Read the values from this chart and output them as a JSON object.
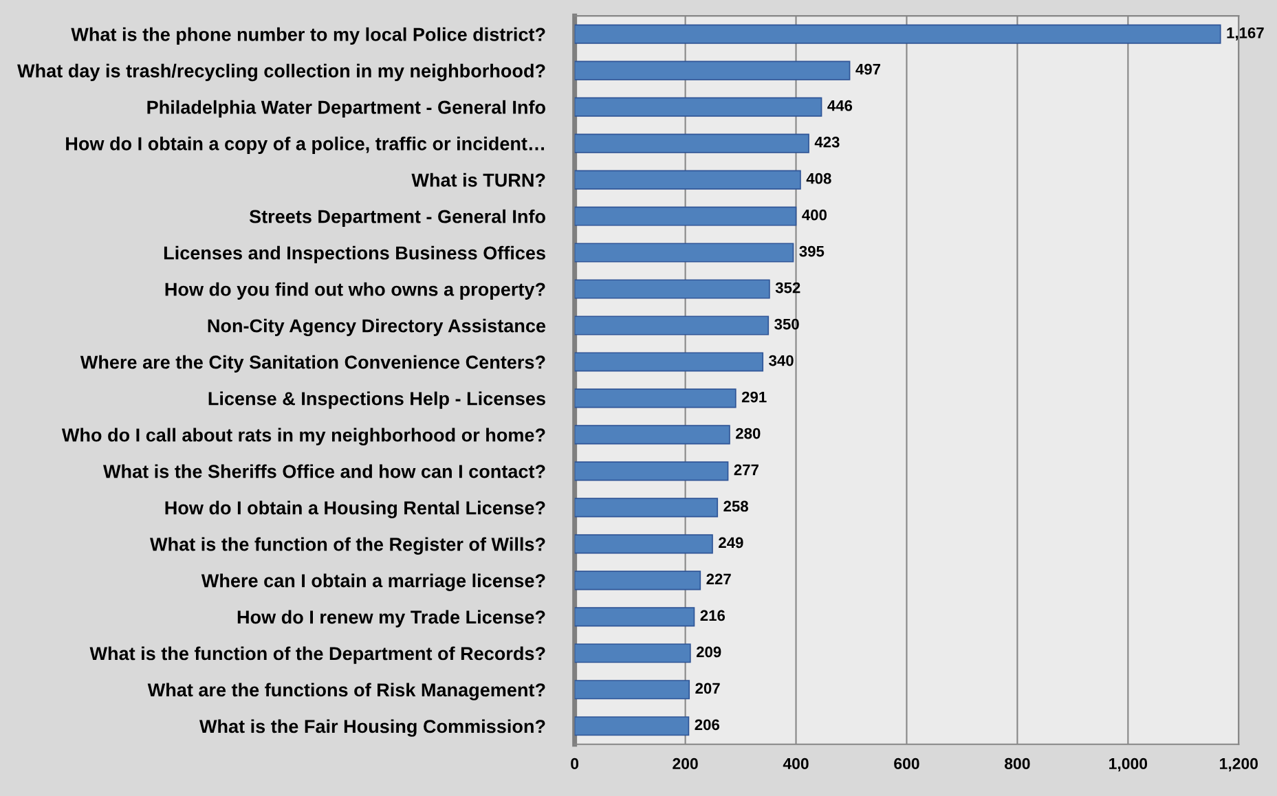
{
  "chart_data": {
    "type": "bar",
    "orientation": "horizontal",
    "categories": [
      "What is the phone number to my local Police district?",
      "What day is trash/recycling collection in my neighborhood?",
      "Philadelphia Water Department - General Info",
      "How do I obtain a copy of a police, traffic or incident…",
      "What is TURN?",
      "Streets Department - General Info",
      "Licenses and Inspections Business Offices",
      "How do you find out who owns a property?",
      "Non-City Agency Directory Assistance",
      "Where are the City Sanitation Convenience Centers?",
      "License & Inspections Help - Licenses",
      "Who do I call about rats in my neighborhood or home?",
      "What is the Sheriffs Office and how can I contact?",
      "How do I obtain a Housing Rental License?",
      "What is the function of the Register of Wills?",
      "Where can I obtain a marriage license?",
      "How do I renew my Trade License?",
      "What is the function of the Department of Records?",
      "What are the functions of Risk Management?",
      "What is the Fair Housing Commission?"
    ],
    "values": [
      1167,
      497,
      446,
      423,
      408,
      400,
      395,
      352,
      350,
      340,
      291,
      280,
      277,
      258,
      249,
      227,
      216,
      209,
      207,
      206
    ],
    "value_labels": [
      "1,167",
      "497",
      "446",
      "423",
      "408",
      "400",
      "395",
      "352",
      "350",
      "340",
      "291",
      "280",
      "277",
      "258",
      "249",
      "227",
      "216",
      "209",
      "207",
      "206"
    ],
    "color": "#4f81bd",
    "xlim": [
      0,
      1200
    ],
    "xticks": [
      0,
      200,
      400,
      600,
      800,
      {
        "value": 1000,
        "label": "1,000"
      },
      {
        "value": 1200,
        "label": "1,200"
      }
    ],
    "grid": "x"
  }
}
